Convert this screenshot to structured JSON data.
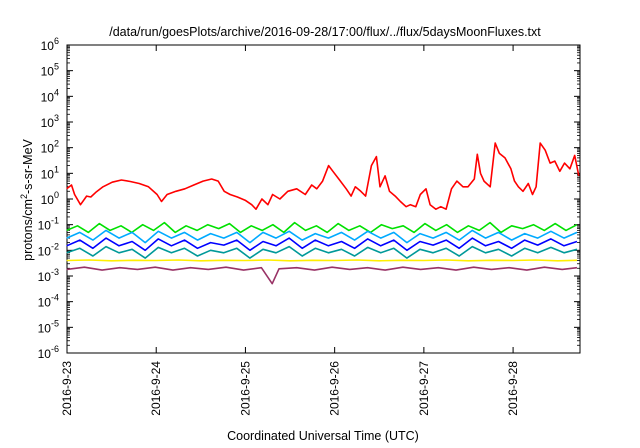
{
  "chart_data": {
    "type": "line",
    "title": "/data/run/goesPlots/archive/2016-09-28/17:00/flux/../flux/5daysMoonFluxes.txt",
    "xlabel": "Coordinated Universal Time (UTC)",
    "ylabel": {
      "prefix": "protons/cm",
      "superscript": "2",
      "suffix": "-s-sr-MeV"
    },
    "scale": {
      "x": "time",
      "y": "log"
    },
    "xlim": [
      "2016-09-23T00:00",
      "2016-09-28T18:00"
    ],
    "ylim": [
      1e-06,
      1000000.0
    ],
    "grid": false,
    "legend": "none",
    "x_ticks": [
      "2016-9-23",
      "2016-9-24",
      "2016-9-25",
      "2016-9-26",
      "2016-9-27",
      "2016-9-28"
    ],
    "y_ticks": [
      {
        "value": 1e-06,
        "base": "10",
        "exp": "-6"
      },
      {
        "value": 1e-05,
        "base": "10",
        "exp": "-5"
      },
      {
        "value": 0.0001,
        "base": "10",
        "exp": "-4"
      },
      {
        "value": 0.001,
        "base": "10",
        "exp": "-3"
      },
      {
        "value": 0.01,
        "base": "10",
        "exp": "-2"
      },
      {
        "value": 0.1,
        "base": "10",
        "exp": "-1"
      },
      {
        "value": 1.0,
        "base": "10",
        "exp": "0"
      },
      {
        "value": 10.0,
        "base": "10",
        "exp": "1"
      },
      {
        "value": 100.0,
        "base": "10",
        "exp": "2"
      },
      {
        "value": 1000.0,
        "base": "10",
        "exp": "3"
      },
      {
        "value": 10000.0,
        "base": "10",
        "exp": "4"
      },
      {
        "value": 100000.0,
        "base": "10",
        "exp": "5"
      },
      {
        "value": 1000000.0,
        "base": "10",
        "exp": "6"
      }
    ],
    "series": [
      {
        "color": "#ff0000",
        "x": [
          "2016-09-22T23:55",
          "2016-09-23T01:12",
          "2016-09-23T02:02",
          "2016-09-23T03:38",
          "2016-09-23T05:17",
          "2016-09-23T06:24",
          "2016-09-23T07:43",
          "2016-09-23T09:41",
          "2016-09-23T12:10",
          "2016-09-23T14:38",
          "2016-09-23T17:02",
          "2016-09-23T19:26",
          "2016-09-23T21:55",
          "2016-09-24T00:14",
          "2016-09-24T01:26",
          "2016-09-24T02:55",
          "2016-09-24T05:17",
          "2016-09-24T07:43",
          "2016-09-24T10:07",
          "2016-09-24T12:36",
          "2016-09-24T14:55",
          "2016-09-24T16:41",
          "2016-09-24T18:17",
          "2016-09-24T19:53",
          "2016-09-24T21:50",
          "2016-09-24T23:55",
          "2016-09-25T01:41",
          "2016-09-25T02:50",
          "2016-09-25T04:26",
          "2016-09-25T06:02",
          "2016-09-25T07:19",
          "2016-09-25T09:17",
          "2016-09-25T11:24",
          "2016-09-25T13:48",
          "2016-09-25T16:07",
          "2016-09-25T17:50",
          "2016-09-25T19:12",
          "2016-09-25T20:46",
          "2016-09-25T22:22",
          "2016-09-25T23:31",
          "2016-09-26T01:07",
          "2016-09-26T03:07",
          "2016-09-26T04:26",
          "2016-09-26T05:34",
          "2016-09-26T07:02",
          "2016-09-26T08:19",
          "2016-09-26T09:53",
          "2016-09-26T11:14",
          "2016-09-26T12:12",
          "2016-09-26T13:34",
          "2016-09-26T14:46",
          "2016-09-26T16:17",
          "2016-09-26T17:41",
          "2016-09-26T19:14",
          "2016-09-26T20:22",
          "2016-09-26T21:50",
          "2016-09-26T23:02",
          "2016-09-27T00:34",
          "2016-09-27T01:41",
          "2016-09-27T03:14",
          "2016-09-27T04:34",
          "2016-09-27T05:58",
          "2016-09-27T07:26",
          "2016-09-27T08:53",
          "2016-09-27T10:31",
          "2016-09-27T11:53",
          "2016-09-27T13:34",
          "2016-09-27T14:22",
          "2016-09-27T15:14",
          "2016-09-27T16:10",
          "2016-09-27T17:50",
          "2016-09-27T19:12",
          "2016-09-27T20:19",
          "2016-09-27T21:50",
          "2016-09-27T23:24",
          "2016-09-28T00:22",
          "2016-09-28T01:26",
          "2016-09-28T02:40",
          "2016-09-28T04:05",
          "2016-09-28T05:14",
          "2016-09-28T06:12",
          "2016-09-28T07:17",
          "2016-09-28T08:38",
          "2016-09-28T09:58",
          "2016-09-28T11:14",
          "2016-09-28T12:34",
          "2016-09-28T13:50",
          "2016-09-28T15:17",
          "2016-09-28T16:34",
          "2016-09-28T17:41"
        ],
        "y": [
          2.5,
          3.5,
          1.5,
          0.6,
          1.3,
          1.2,
          1.8,
          3.0,
          4.5,
          5.5,
          4.8,
          4.0,
          3.0,
          1.5,
          0.8,
          1.5,
          2.0,
          2.5,
          3.5,
          5.0,
          6.0,
          5.0,
          2.0,
          1.5,
          1.2,
          0.9,
          0.6,
          0.4,
          1.0,
          0.6,
          1.5,
          1.0,
          2.0,
          2.5,
          1.5,
          3.5,
          2.5,
          5.0,
          20,
          12,
          6,
          2.5,
          1.3,
          3.0,
          2.0,
          1.3,
          20,
          45,
          3.0,
          8.0,
          2.0,
          1.3,
          0.8,
          0.5,
          0.6,
          0.5,
          1.5,
          2.5,
          0.6,
          0.4,
          0.5,
          0.4,
          2.5,
          5.0,
          3.0,
          3.0,
          6.0,
          55,
          10,
          5.0,
          3.0,
          150,
          60,
          40,
          15,
          5.0,
          3.0,
          2.0,
          4.0,
          1.5,
          3.0,
          150,
          80,
          25,
          30,
          12,
          25,
          15,
          50,
          8.0
        ]
      },
      {
        "color": "#00e000",
        "x": [
          "2016-09-22T23:55",
          "2016-09-23T02:50",
          "2016-09-23T05:46",
          "2016-09-23T08:41",
          "2016-09-23T11:36",
          "2016-09-23T14:31",
          "2016-09-23T17:26",
          "2016-09-23T20:22",
          "2016-09-23T23:17",
          "2016-09-24T02:12",
          "2016-09-24T05:07",
          "2016-09-24T08:02",
          "2016-09-24T10:58",
          "2016-09-24T13:53",
          "2016-09-24T16:48",
          "2016-09-24T19:43",
          "2016-09-24T22:38",
          "2016-09-25T01:34",
          "2016-09-25T04:29",
          "2016-09-25T07:24",
          "2016-09-25T10:19",
          "2016-09-25T13:14",
          "2016-09-25T16:10",
          "2016-09-25T19:05",
          "2016-09-25T22:00",
          "2016-09-26T00:55",
          "2016-09-26T03:50",
          "2016-09-26T06:46",
          "2016-09-26T09:41",
          "2016-09-26T12:36",
          "2016-09-26T15:31",
          "2016-09-26T18:26",
          "2016-09-26T21:22",
          "2016-09-27T00:17",
          "2016-09-27T03:12",
          "2016-09-27T06:07",
          "2016-09-27T09:02",
          "2016-09-27T11:58",
          "2016-09-27T14:53",
          "2016-09-27T17:48",
          "2016-09-27T20:43",
          "2016-09-27T23:38",
          "2016-09-28T02:34",
          "2016-09-28T05:29",
          "2016-09-28T08:24",
          "2016-09-28T11:19",
          "2016-09-28T14:14",
          "2016-09-28T17:10"
        ],
        "y": [
          0.06,
          0.09,
          0.05,
          0.11,
          0.06,
          0.09,
          0.05,
          0.1,
          0.06,
          0.12,
          0.05,
          0.09,
          0.06,
          0.1,
          0.07,
          0.11,
          0.05,
          0.09,
          0.06,
          0.1,
          0.05,
          0.12,
          0.06,
          0.09,
          0.05,
          0.11,
          0.06,
          0.09,
          0.05,
          0.1,
          0.07,
          0.09,
          0.05,
          0.11,
          0.06,
          0.1,
          0.05,
          0.09,
          0.06,
          0.12,
          0.05,
          0.09,
          0.07,
          0.1,
          0.06,
          0.11,
          0.06,
          0.1
        ]
      },
      {
        "color": "#00aaff",
        "x": [
          "2016-09-22T23:55",
          "2016-09-23T03:26",
          "2016-09-23T06:58",
          "2016-09-23T10:29",
          "2016-09-23T14:00",
          "2016-09-23T17:31",
          "2016-09-23T21:02",
          "2016-09-24T00:34",
          "2016-09-24T04:05",
          "2016-09-24T07:36",
          "2016-09-24T11:07",
          "2016-09-24T14:38",
          "2016-09-24T18:10",
          "2016-09-24T21:41",
          "2016-09-25T01:12",
          "2016-09-25T04:43",
          "2016-09-25T08:14",
          "2016-09-25T11:46",
          "2016-09-25T15:17",
          "2016-09-25T18:48",
          "2016-09-25T22:19",
          "2016-09-26T01:50",
          "2016-09-26T05:22",
          "2016-09-26T08:53",
          "2016-09-26T12:24",
          "2016-09-26T15:55",
          "2016-09-26T19:26",
          "2016-09-26T22:58",
          "2016-09-27T02:29",
          "2016-09-27T06:00",
          "2016-09-27T09:31",
          "2016-09-27T13:02",
          "2016-09-27T16:34",
          "2016-09-27T20:05",
          "2016-09-27T23:36",
          "2016-09-28T03:07",
          "2016-09-28T06:38",
          "2016-09-28T10:10",
          "2016-09-28T13:41",
          "2016-09-28T17:12"
        ],
        "y": [
          0.03,
          0.05,
          0.025,
          0.06,
          0.03,
          0.05,
          0.02,
          0.055,
          0.03,
          0.05,
          0.025,
          0.045,
          0.03,
          0.05,
          0.02,
          0.05,
          0.03,
          0.055,
          0.025,
          0.045,
          0.03,
          0.05,
          0.025,
          0.055,
          0.03,
          0.05,
          0.02,
          0.045,
          0.03,
          0.05,
          0.025,
          0.06,
          0.03,
          0.05,
          0.025,
          0.045,
          0.03,
          0.055,
          0.03,
          0.05
        ]
      },
      {
        "color": "#0000ff",
        "x": [
          "2016-09-22T23:55",
          "2016-09-23T03:26",
          "2016-09-23T06:58",
          "2016-09-23T10:29",
          "2016-09-23T14:00",
          "2016-09-23T17:31",
          "2016-09-23T21:02",
          "2016-09-24T00:34",
          "2016-09-24T04:05",
          "2016-09-24T07:36",
          "2016-09-24T11:07",
          "2016-09-24T14:38",
          "2016-09-24T18:10",
          "2016-09-24T21:41",
          "2016-09-25T01:12",
          "2016-09-25T04:43",
          "2016-09-25T08:14",
          "2016-09-25T11:46",
          "2016-09-25T15:17",
          "2016-09-25T18:48",
          "2016-09-25T22:19",
          "2016-09-26T01:50",
          "2016-09-26T05:22",
          "2016-09-26T08:53",
          "2016-09-26T12:24",
          "2016-09-26T15:55",
          "2016-09-26T19:26",
          "2016-09-26T22:58",
          "2016-09-27T02:29",
          "2016-09-27T06:00",
          "2016-09-27T09:31",
          "2016-09-27T13:02",
          "2016-09-27T16:34",
          "2016-09-27T20:05",
          "2016-09-27T23:36",
          "2016-09-28T03:07",
          "2016-09-28T06:38",
          "2016-09-28T10:10",
          "2016-09-28T13:41",
          "2016-09-28T17:12"
        ],
        "y": [
          0.015,
          0.025,
          0.012,
          0.03,
          0.015,
          0.022,
          0.01,
          0.028,
          0.015,
          0.025,
          0.012,
          0.02,
          0.016,
          0.025,
          0.01,
          0.022,
          0.015,
          0.03,
          0.012,
          0.025,
          0.015,
          0.022,
          0.012,
          0.028,
          0.015,
          0.025,
          0.01,
          0.022,
          0.016,
          0.025,
          0.012,
          0.03,
          0.015,
          0.022,
          0.012,
          0.025,
          0.016,
          0.028,
          0.015,
          0.022
        ]
      },
      {
        "color": "#009999",
        "x": [
          "2016-09-22T23:55",
          "2016-09-23T03:26",
          "2016-09-23T06:58",
          "2016-09-23T10:29",
          "2016-09-23T14:00",
          "2016-09-23T17:31",
          "2016-09-23T21:02",
          "2016-09-24T00:34",
          "2016-09-24T04:05",
          "2016-09-24T07:36",
          "2016-09-24T11:07",
          "2016-09-24T14:38",
          "2016-09-24T18:10",
          "2016-09-24T21:41",
          "2016-09-25T01:12",
          "2016-09-25T04:43",
          "2016-09-25T08:14",
          "2016-09-25T11:46",
          "2016-09-25T15:17",
          "2016-09-25T18:48",
          "2016-09-25T22:19",
          "2016-09-26T01:50",
          "2016-09-26T05:22",
          "2016-09-26T08:53",
          "2016-09-26T12:24",
          "2016-09-26T15:55",
          "2016-09-26T19:26",
          "2016-09-26T22:58",
          "2016-09-27T02:29",
          "2016-09-27T06:00",
          "2016-09-27T09:31",
          "2016-09-27T13:02",
          "2016-09-27T16:34",
          "2016-09-27T20:05",
          "2016-09-27T23:36",
          "2016-09-28T03:07",
          "2016-09-28T06:38",
          "2016-09-28T10:10",
          "2016-09-28T13:41",
          "2016-09-28T17:12"
        ],
        "y": [
          0.008,
          0.012,
          0.006,
          0.014,
          0.008,
          0.011,
          0.005,
          0.013,
          0.008,
          0.012,
          0.006,
          0.01,
          0.008,
          0.012,
          0.005,
          0.011,
          0.008,
          0.014,
          0.006,
          0.012,
          0.008,
          0.011,
          0.006,
          0.013,
          0.008,
          0.012,
          0.005,
          0.011,
          0.008,
          0.012,
          0.006,
          0.014,
          0.008,
          0.011,
          0.006,
          0.012,
          0.008,
          0.013,
          0.008,
          0.011
        ]
      },
      {
        "color": "#ffee00",
        "x": [
          "2016-09-22T23:55",
          "2016-09-23T06:00",
          "2016-09-23T12:00",
          "2016-09-23T18:00",
          "2016-09-24T00:00",
          "2016-09-24T06:00",
          "2016-09-24T12:00",
          "2016-09-24T18:00",
          "2016-09-25T00:00",
          "2016-09-25T06:00",
          "2016-09-25T12:00",
          "2016-09-25T18:00",
          "2016-09-26T00:00",
          "2016-09-26T06:00",
          "2016-09-26T12:00",
          "2016-09-26T18:00",
          "2016-09-27T00:00",
          "2016-09-27T06:00",
          "2016-09-27T12:00",
          "2016-09-27T18:00",
          "2016-09-28T00:00",
          "2016-09-28T06:00",
          "2016-09-28T12:00",
          "2016-09-28T17:12"
        ],
        "y": [
          0.004,
          0.0042,
          0.0039,
          0.0041,
          0.004,
          0.0042,
          0.0039,
          0.0041,
          0.004,
          0.0042,
          0.0039,
          0.0041,
          0.004,
          0.0042,
          0.0039,
          0.0041,
          0.004,
          0.0042,
          0.0039,
          0.0041,
          0.004,
          0.0042,
          0.0039,
          0.0041
        ]
      },
      {
        "color": "#993366",
        "x": [
          "2016-09-22T23:55",
          "2016-09-23T04:41",
          "2016-09-23T09:26",
          "2016-09-23T14:12",
          "2016-09-23T18:58",
          "2016-09-23T23:43",
          "2016-09-24T04:29",
          "2016-09-24T09:14",
          "2016-09-24T14:00",
          "2016-09-24T18:46",
          "2016-09-24T23:31",
          "2016-09-25T04:17",
          "2016-09-25T07:12",
          "2016-09-25T09:02",
          "2016-09-25T13:48",
          "2016-09-25T18:34",
          "2016-09-25T23:19",
          "2016-09-26T04:05",
          "2016-09-26T08:50",
          "2016-09-26T13:36",
          "2016-09-26T18:22",
          "2016-09-26T23:07",
          "2016-09-27T03:53",
          "2016-09-27T08:38",
          "2016-09-27T13:24",
          "2016-09-27T18:10",
          "2016-09-27T22:55",
          "2016-09-28T03:41",
          "2016-09-28T08:26",
          "2016-09-28T13:12",
          "2016-09-28T17:12"
        ],
        "y": [
          0.0018,
          0.0022,
          0.0017,
          0.0021,
          0.0018,
          0.0022,
          0.0017,
          0.0021,
          0.0018,
          0.0022,
          0.0017,
          0.0021,
          0.0005,
          0.0019,
          0.0021,
          0.0017,
          0.0022,
          0.0018,
          0.0021,
          0.0017,
          0.0022,
          0.0018,
          0.0021,
          0.0017,
          0.0022,
          0.0018,
          0.0021,
          0.0017,
          0.0022,
          0.0018,
          0.0021
        ]
      }
    ]
  }
}
